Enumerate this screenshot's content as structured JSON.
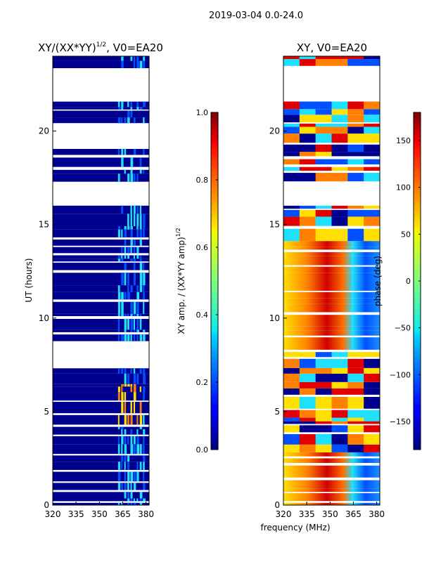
{
  "figure_title": "2019-03-04 0.0-24.0",
  "shared_xlabel": "frequency (MHz)",
  "colors": {
    "deep_blue": "#00008f",
    "blue": "#0050ff",
    "cyan": "#1fe0ff",
    "yellow": "#ffe000",
    "orange": "#ff8000",
    "red": "#e00000",
    "dark_red": "#800000"
  },
  "chart_data": [
    {
      "type": "heatmap",
      "title_base": "XY/(XX*YY)",
      "title_exp": "1/2",
      "title_suffix": ", V0=EA20",
      "xlabel": "",
      "ylabel": "UT (hours)",
      "xlim": [
        320,
        382
      ],
      "ylim": [
        0,
        24
      ],
      "xticks": [
        320,
        335,
        350,
        365,
        380
      ],
      "yticks": [
        0,
        5,
        10,
        15,
        20
      ],
      "colorbar": {
        "label_base": "XY amp. / (XX*YY amp)",
        "label_exp": "1/2",
        "range": [
          0.0,
          1.0
        ],
        "ticks": [
          "0.0",
          "0.2",
          "0.4",
          "0.6",
          "0.8",
          "1.0"
        ],
        "tick_values": [
          0.0,
          0.2,
          0.4,
          0.6,
          0.8,
          1.0
        ]
      },
      "blank_time_ranges": [
        [
          21.7,
          23.2
        ],
        [
          19.3,
          20.2
        ],
        [
          16.3,
          17.2
        ],
        [
          7.8,
          8.2
        ]
      ],
      "rfi_channel_band_mhz": [
        362,
        380
      ],
      "elevated_region": {
        "ut": [
          4.8,
          6.4
        ],
        "mhz": [
          362,
          377
        ],
        "value": 0.75
      }
    },
    {
      "type": "heatmap",
      "title_base": "XY, V0=EA20",
      "xlabel": "",
      "ylabel": "",
      "xlim": [
        320,
        382
      ],
      "ylim": [
        0,
        24
      ],
      "xticks": [
        320,
        335,
        350,
        365,
        380
      ],
      "yticks": [
        0,
        5,
        10,
        15,
        20
      ],
      "colorbar": {
        "label_base": "phase (deg)",
        "range": [
          -180,
          180
        ],
        "ticks": [
          "150",
          "100",
          "50",
          "0",
          "−50",
          "−100",
          "−150"
        ],
        "tick_values": [
          150,
          100,
          50,
          0,
          -50,
          -100,
          -150
        ]
      },
      "blank_time_ranges": [
        [
          21.7,
          23.2
        ],
        [
          16.3,
          17.2
        ]
      ]
    }
  ]
}
